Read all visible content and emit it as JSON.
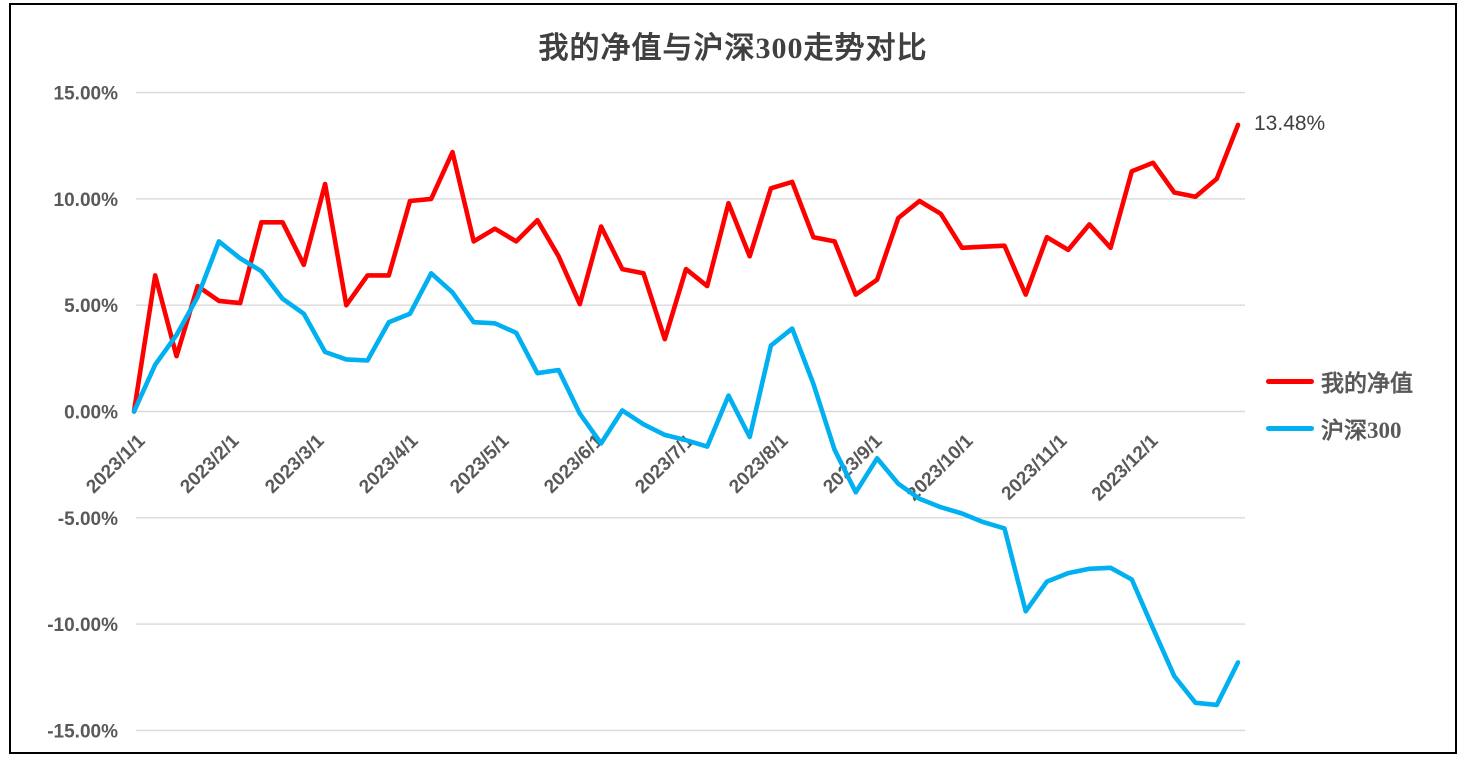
{
  "title": "我的净值与沪深300走势对比",
  "annotation": {
    "text": "13.48%",
    "attached_to": "我的净值 last point (2023/12/31)"
  },
  "legend": {
    "position": "right",
    "items": [
      {
        "label": "我的净值",
        "color": "#FF0000"
      },
      {
        "label": "沪深300",
        "color": "#00B0F0"
      }
    ]
  },
  "y_axis": {
    "tick_labels": [
      "15.00%",
      "10.00%",
      "5.00%",
      "0.00%",
      "-5.00%",
      "-10.00%",
      "-15.00%"
    ],
    "tick_values": [
      15,
      10,
      5,
      0,
      -5,
      -10,
      -15
    ]
  },
  "x_axis": {
    "tick_labels": [
      "2023/1/1",
      "2023/2/1",
      "2023/3/1",
      "2023/4/1",
      "2023/5/1",
      "2023/6/1",
      "2023/7/1",
      "2023/8/1",
      "2023/9/1",
      "2023/10/1",
      "2023/11/1",
      "2023/12/1"
    ],
    "tick_day_offsets": [
      0,
      31,
      59,
      90,
      120,
      151,
      181,
      212,
      243,
      273,
      304,
      334
    ]
  },
  "chart_data": {
    "type": "line",
    "title": "我的净值与沪深300走势对比",
    "x_description": "53 weekly points, 2023/1/1 to 2023/12/31, values in percent",
    "x_tick_labels": [
      "2023/1/1",
      "2023/2/1",
      "2023/3/1",
      "2023/4/1",
      "2023/5/1",
      "2023/6/1",
      "2023/7/1",
      "2023/8/1",
      "2023/9/1",
      "2023/10/1",
      "2023/11/1",
      "2023/12/1"
    ],
    "y_tick_values": [
      15,
      10,
      5,
      0,
      -5,
      -10,
      -15
    ],
    "ylim": [
      -15,
      15
    ],
    "grid": true,
    "legend_position": "right",
    "series": [
      {
        "name": "我的净值",
        "color": "#FF0000",
        "values": [
          0.0,
          6.4,
          2.6,
          5.9,
          5.2,
          5.1,
          8.9,
          8.9,
          6.9,
          10.7,
          5.0,
          6.4,
          6.4,
          9.9,
          10.0,
          12.2,
          8.0,
          8.6,
          8.0,
          9.0,
          7.3,
          5.05,
          8.7,
          6.7,
          6.5,
          3.4,
          6.7,
          5.9,
          9.8,
          7.3,
          10.5,
          10.8,
          8.2,
          8.0,
          5.5,
          6.2,
          9.1,
          9.9,
          9.3,
          7.7,
          7.75,
          7.8,
          5.5,
          8.2,
          7.6,
          8.8,
          7.7,
          11.3,
          11.7,
          10.3,
          10.1,
          10.95,
          13.48
        ]
      },
      {
        "name": "沪深300",
        "color": "#00B0F0",
        "values": [
          0.0,
          2.2,
          3.6,
          5.4,
          8.0,
          7.2,
          6.6,
          5.3,
          4.6,
          2.8,
          2.45,
          2.4,
          4.2,
          4.6,
          6.5,
          5.6,
          4.2,
          4.15,
          3.7,
          1.8,
          1.95,
          -0.1,
          -1.5,
          0.05,
          -0.6,
          -1.1,
          -1.35,
          -1.65,
          0.75,
          -1.2,
          3.1,
          3.9,
          1.3,
          -1.8,
          -3.8,
          -2.2,
          -3.4,
          -4.1,
          -4.5,
          -4.8,
          -5.2,
          -5.5,
          -9.4,
          -8.0,
          -7.6,
          -7.4,
          -7.35,
          -7.9,
          -10.2,
          -12.45,
          -13.7,
          -13.8,
          -11.8
        ]
      }
    ],
    "annotations": [
      {
        "text": "13.48%",
        "series": "我的净值",
        "point_index": 52
      }
    ]
  },
  "colors": {
    "axis_text": "#595959",
    "title_text": "#404040",
    "annotation_text": "#404040",
    "gridline": "#D9D9D9",
    "border": "#000000",
    "background": "#FFFFFF"
  }
}
